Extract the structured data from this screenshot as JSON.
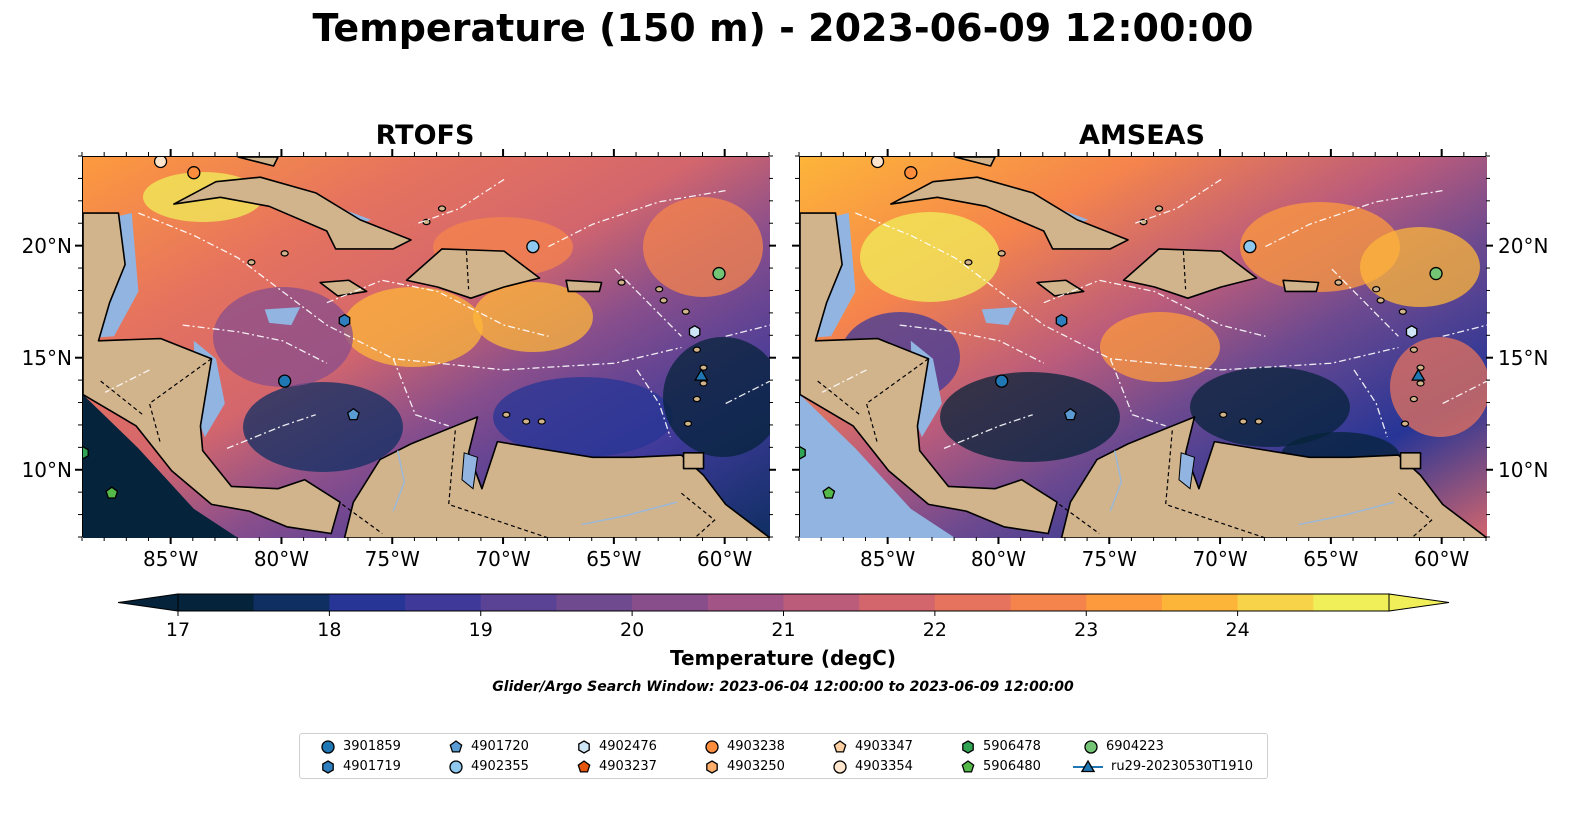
{
  "figure": {
    "title": "Temperature (150 m) - 2023-06-09 12:00:00",
    "window_note": "Glider/Argo Search Window: 2023-06-04 12:00:00 to 2023-06-09 12:00:00"
  },
  "panels": [
    {
      "title": "RTOFS",
      "lat_labels_side": "left"
    },
    {
      "title": "AMSEAS",
      "lat_labels_side": "right"
    }
  ],
  "axes": {
    "lon_labels": [
      "85°W",
      "80°W",
      "75°W",
      "70°W",
      "65°W",
      "60°W"
    ],
    "lon_values": [
      -85,
      -80,
      -75,
      -70,
      -65,
      -60
    ],
    "lat_labels": [
      "20°N",
      "15°N",
      "10°N"
    ],
    "lat_values": [
      20,
      15,
      10
    ],
    "lon_range": [
      -89,
      -58
    ],
    "lat_range": [
      7,
      24
    ]
  },
  "colorbar": {
    "title": "Temperature (degC)",
    "ticks": [
      "17",
      "18",
      "19",
      "20",
      "21",
      "22",
      "23",
      "24"
    ],
    "colors": [
      "#05233a",
      "#0f2f63",
      "#263596",
      "#3f3a9a",
      "#5a4294",
      "#6f4a8f",
      "#884e8c",
      "#a35486",
      "#bc5c7b",
      "#d3666d",
      "#e6735e",
      "#f5844c",
      "#fd9a3e",
      "#fdb539",
      "#f7d34a",
      "#f0ef5a"
    ],
    "extend": "both"
  },
  "legend": {
    "entries": [
      {
        "label": "3901859",
        "marker": "circle",
        "color": "#1f77b4"
      },
      {
        "label": "4901719",
        "marker": "hexagon",
        "color": "#2f7fbf"
      },
      {
        "label": "4901720",
        "marker": "pentagon",
        "color": "#5a9bd4"
      },
      {
        "label": "4902355",
        "marker": "circle",
        "color": "#8ec8ee"
      },
      {
        "label": "4902476",
        "marker": "hexagon",
        "color": "#cfe6f6"
      },
      {
        "label": "4903237",
        "marker": "pentagon",
        "color": "#e6550d"
      },
      {
        "label": "4903238",
        "marker": "circle",
        "color": "#fd8d3c"
      },
      {
        "label": "4903250",
        "marker": "hexagon",
        "color": "#fdae6b"
      },
      {
        "label": "4903347",
        "marker": "pentagon",
        "color": "#fdd0a2"
      },
      {
        "label": "4903354",
        "marker": "circle",
        "color": "#fee6ce"
      },
      {
        "label": "5906478",
        "marker": "hexagon",
        "color": "#31a354"
      },
      {
        "label": "5906480",
        "marker": "pentagon",
        "color": "#54b948"
      },
      {
        "label": "6904223",
        "marker": "circle",
        "color": "#74c476"
      },
      {
        "label": "ru29-20230530T1910",
        "marker": "triangle-line",
        "color": "#1f77b4"
      }
    ]
  },
  "observations": [
    {
      "id": "4903354",
      "lon": -85.5,
      "lat": 23.8
    },
    {
      "id": "4903238",
      "lon": -84.0,
      "lat": 23.3
    },
    {
      "id": "4902355",
      "lon": -68.7,
      "lat": 20.0
    },
    {
      "id": "6904223",
      "lon": -60.3,
      "lat": 18.8
    },
    {
      "id": "4901719",
      "lon": -77.2,
      "lat": 16.7
    },
    {
      "id": "3901859",
      "lon": -79.9,
      "lat": 14.0
    },
    {
      "id": "4901720",
      "lon": -76.8,
      "lat": 12.5
    },
    {
      "id": "4902476",
      "lon": -61.4,
      "lat": 16.2
    },
    {
      "id": "ru29-20230530T1910",
      "lon": -61.1,
      "lat": 14.2
    },
    {
      "id": "5906478",
      "lon": -89.0,
      "lat": 10.8
    },
    {
      "id": "5906480",
      "lon": -87.7,
      "lat": 9.0
    }
  ],
  "style": {
    "land": "#d2b48c",
    "shelf": "#92b4e0",
    "coast": "#000000",
    "eez": "#ffffff"
  }
}
